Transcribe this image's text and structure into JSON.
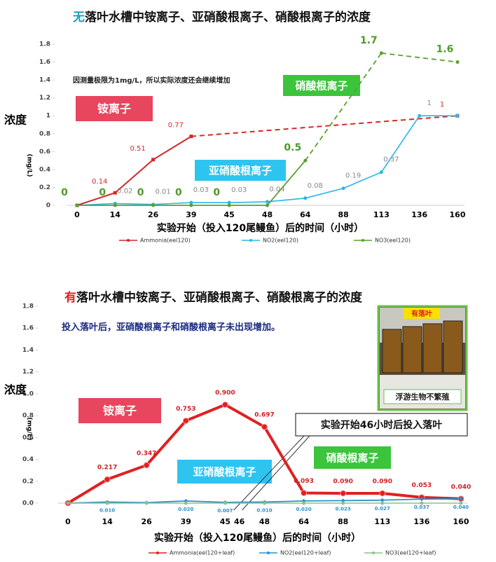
{
  "chart_data": [
    {
      "type": "line",
      "title": "无落叶水槽中铵离子、亚硝酸根离子、硝酸根离子的浓度",
      "note": "因测量极限为1mg/L，所以实际浓度还会继续增加",
      "ylabel": "浓度",
      "yunit": "(mg/L)",
      "xlabel": "实验开始（投入120尾鳗鱼）后的时间（小时）",
      "categories": [
        "0",
        "14",
        "26",
        "39",
        "45",
        "48",
        "64",
        "88",
        "113",
        "136",
        "160"
      ],
      "ylim": [
        0,
        1.8
      ],
      "yticks": [
        0,
        0.2,
        0.4,
        0.6,
        0.8,
        1,
        1.2,
        1.4,
        1.6,
        1.8
      ],
      "series": [
        {
          "name": "Ammonia(eel120)",
          "color": "#d62728",
          "values": [
            0,
            0.14,
            0.51,
            0.77,
            null,
            null,
            null,
            null,
            null,
            null,
            1
          ],
          "value_labels": [
            null,
            "0.14",
            "0.51",
            "0.77",
            null,
            null,
            null,
            null,
            null,
            null,
            "1"
          ]
        },
        {
          "name": "NO2(eel120)",
          "color": "#29b6e8",
          "values": [
            0,
            0.02,
            0.01,
            0.03,
            0.03,
            0.04,
            0.08,
            0.19,
            0.37,
            1,
            1
          ],
          "value_labels": [
            null,
            "0.02",
            "0.01",
            "0.03",
            "0.03",
            "0.04",
            "0.08",
            "0.19",
            "0.37",
            "1",
            null
          ]
        },
        {
          "name": "NO3(eel120)",
          "color": "#5aa02c",
          "values": [
            0,
            0,
            0,
            0,
            0,
            0,
            0.5,
            null,
            1.7,
            null,
            1.6
          ],
          "value_labels": [
            "0",
            "0",
            "0",
            "0",
            "0",
            null,
            "0.5",
            null,
            "1.7",
            null,
            "1.6"
          ]
        }
      ],
      "annotations": [
        {
          "text": "铵离子",
          "color": "#e8455e"
        },
        {
          "text": "亚硝酸根离子",
          "color": "#2ec4f0"
        },
        {
          "text": "硝酸根离子",
          "color": "#3cc43c"
        }
      ]
    },
    {
      "type": "line",
      "title": "有落叶水槽中铵离子、亚硝酸根离子、硝酸根离子的浓度",
      "subtitle": "投入落叶后，亚硝酸根离子和硝酸根离子未出现增加。",
      "ylabel": "浓度",
      "yunit": "(mg/L)",
      "xlabel": "实验开始（投入120尾鳗鱼）后的时间（小时）",
      "categories": [
        "0",
        "14",
        "26",
        "39",
        "45",
        "48",
        "64",
        "88",
        "113",
        "136",
        "160"
      ],
      "x_extra_tick_labels": [
        "46"
      ],
      "ylim": [
        0,
        1.8
      ],
      "yticks": [
        {
          "value": 0,
          "label": "0.0"
        },
        0.2,
        0.4,
        0.6,
        0.8,
        {
          "value": 1,
          "label": "1.0"
        },
        1.2,
        1.4,
        1.6,
        1.8
      ],
      "series": [
        {
          "name": "Ammonia(eel120+leaf)",
          "color": "#e02020",
          "values": [
            0,
            0.217,
            0.347,
            0.753,
            0.9,
            0.697,
            0.093,
            0.09,
            0.09,
            0.053,
            0.04
          ],
          "value_labels": [
            null,
            "0.217",
            "0.347",
            "0.753",
            "0.900",
            "0.697",
            "0.093",
            "0.090",
            "0.090",
            "0.053",
            "0.040"
          ]
        },
        {
          "name": "NO2(eel120+leaf)",
          "color": "#2a8fd0",
          "values": [
            0,
            0.01,
            0.005,
            0.02,
            0.007,
            0.01,
            0.02,
            0.023,
            0.027,
            0.037,
            0.04
          ],
          "value_labels": [
            null,
            "0.010",
            null,
            "0.020",
            "0.007",
            "0.010",
            "0.020",
            "0.023",
            "0.027",
            "0.037",
            "0.040"
          ]
        },
        {
          "name": "NO3(eel120+leaf)",
          "color": "#8cc08c",
          "values": [
            0,
            0,
            0,
            0,
            0,
            0,
            0,
            0,
            0,
            0,
            0
          ],
          "value_labels": [
            null,
            null,
            null,
            null,
            null,
            null,
            null,
            null,
            null,
            null,
            null
          ]
        }
      ],
      "annotations": [
        {
          "text": "铵离子",
          "color": "#e8455e"
        },
        {
          "text": "亚硝酸根离子",
          "color": "#2ec4f0"
        },
        {
          "text": "硝酸根离子",
          "color": "#3cc43c"
        },
        {
          "text": "实验开始46小时后投入落叶",
          "color": "#ffffff"
        }
      ],
      "photo": {
        "tag": "有落叶",
        "caption": "浮游生物不繁殖"
      }
    }
  ]
}
